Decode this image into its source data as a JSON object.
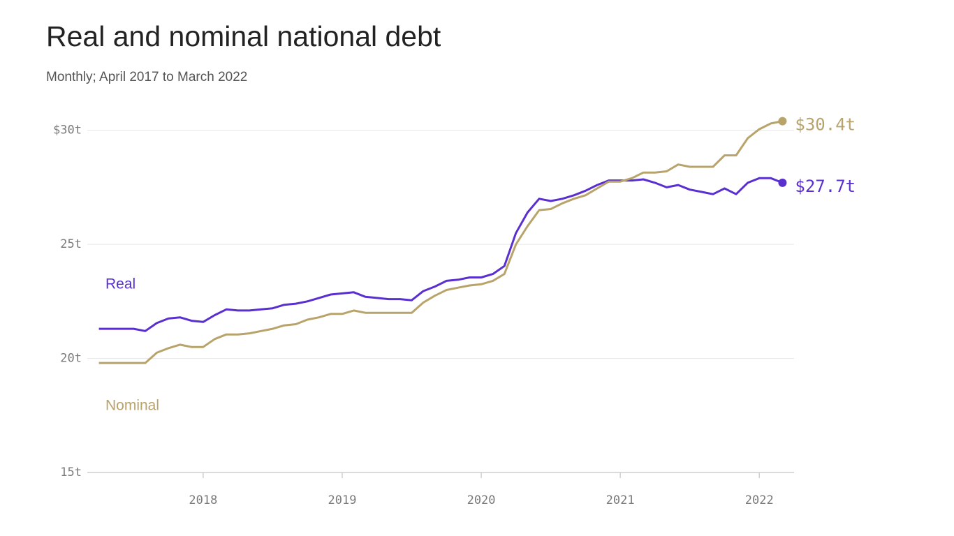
{
  "chart_data": {
    "type": "line",
    "title": "Real and nominal national debt",
    "subtitle": "Monthly; April 2017 to March 2022",
    "x": [
      "2017-04",
      "2017-05",
      "2017-06",
      "2017-07",
      "2017-08",
      "2017-09",
      "2017-10",
      "2017-11",
      "2017-12",
      "2018-01",
      "2018-02",
      "2018-03",
      "2018-04",
      "2018-05",
      "2018-06",
      "2018-07",
      "2018-08",
      "2018-09",
      "2018-10",
      "2018-11",
      "2018-12",
      "2019-01",
      "2019-02",
      "2019-03",
      "2019-04",
      "2019-05",
      "2019-06",
      "2019-07",
      "2019-08",
      "2019-09",
      "2019-10",
      "2019-11",
      "2019-12",
      "2020-01",
      "2020-02",
      "2020-03",
      "2020-04",
      "2020-05",
      "2020-06",
      "2020-07",
      "2020-08",
      "2020-09",
      "2020-10",
      "2020-11",
      "2020-12",
      "2021-01",
      "2021-02",
      "2021-03",
      "2021-04",
      "2021-05",
      "2021-06",
      "2021-07",
      "2021-08",
      "2021-09",
      "2021-10",
      "2021-11",
      "2021-12",
      "2022-01",
      "2022-02",
      "2022-03"
    ],
    "series": [
      {
        "name": "Real",
        "color": "#5a2fd0",
        "values": [
          21.3,
          21.3,
          21.3,
          21.3,
          21.2,
          21.55,
          21.75,
          21.8,
          21.65,
          21.6,
          21.9,
          22.15,
          22.1,
          22.1,
          22.15,
          22.2,
          22.35,
          22.4,
          22.5,
          22.65,
          22.8,
          22.85,
          22.9,
          22.7,
          22.65,
          22.6,
          22.6,
          22.55,
          22.95,
          23.15,
          23.4,
          23.45,
          23.55,
          23.55,
          23.7,
          24.05,
          25.5,
          26.4,
          27.0,
          26.9,
          27.0,
          27.15,
          27.35,
          27.6,
          27.8,
          27.8,
          27.8,
          27.85,
          27.7,
          27.5,
          27.6,
          27.4,
          27.3,
          27.2,
          27.45,
          27.2,
          27.7,
          27.9,
          27.9,
          27.7
        ],
        "value_labels": [
          null,
          null,
          null,
          null,
          null,
          null,
          null,
          null,
          null,
          null,
          null,
          null,
          null,
          null,
          null,
          null,
          null,
          null,
          null,
          null,
          null,
          null,
          null,
          null,
          null,
          null,
          null,
          null,
          null,
          null,
          null,
          null,
          null,
          null,
          null,
          null,
          null,
          null,
          null,
          null,
          null,
          null,
          null,
          null,
          null,
          null,
          null,
          null,
          null,
          null,
          null,
          null,
          null,
          null,
          null,
          null,
          null,
          null,
          null,
          "$27.7t"
        ]
      },
      {
        "name": "Nominal",
        "color": "#b8a36b",
        "values": [
          19.8,
          19.8,
          19.8,
          19.8,
          19.8,
          20.25,
          20.45,
          20.6,
          20.5,
          20.5,
          20.85,
          21.05,
          21.05,
          21.1,
          21.2,
          21.3,
          21.45,
          21.5,
          21.7,
          21.8,
          21.95,
          21.95,
          22.1,
          22.0,
          22.0,
          22.0,
          22.0,
          22.0,
          22.45,
          22.75,
          23.0,
          23.1,
          23.2,
          23.25,
          23.4,
          23.7,
          25.0,
          25.8,
          26.5,
          26.55,
          26.8,
          27.0,
          27.15,
          27.45,
          27.75,
          27.75,
          27.9,
          28.15,
          28.15,
          28.2,
          28.5,
          28.4,
          28.4,
          28.4,
          28.9,
          28.9,
          29.65,
          30.05,
          30.3,
          30.4
        ],
        "value_labels": [
          null,
          null,
          null,
          null,
          null,
          null,
          null,
          null,
          null,
          null,
          null,
          null,
          null,
          null,
          null,
          null,
          null,
          null,
          null,
          null,
          null,
          null,
          null,
          null,
          null,
          null,
          null,
          null,
          null,
          null,
          null,
          null,
          null,
          null,
          null,
          null,
          null,
          null,
          null,
          null,
          null,
          null,
          null,
          null,
          null,
          null,
          null,
          null,
          null,
          null,
          null,
          null,
          null,
          null,
          null,
          null,
          null,
          null,
          null,
          "$30.4t"
        ]
      }
    ],
    "xlim": [
      "2017-03",
      "2022-04"
    ],
    "xticks": [
      2018,
      2019,
      2020,
      2021,
      2022
    ],
    "ylim": [
      15,
      31
    ],
    "yticks": [
      {
        "value": 15,
        "label": "15t"
      },
      {
        "value": 20,
        "label": "20t"
      },
      {
        "value": 25,
        "label": "25t"
      },
      {
        "value": 30,
        "label": "$30t"
      }
    ],
    "grid": true
  }
}
